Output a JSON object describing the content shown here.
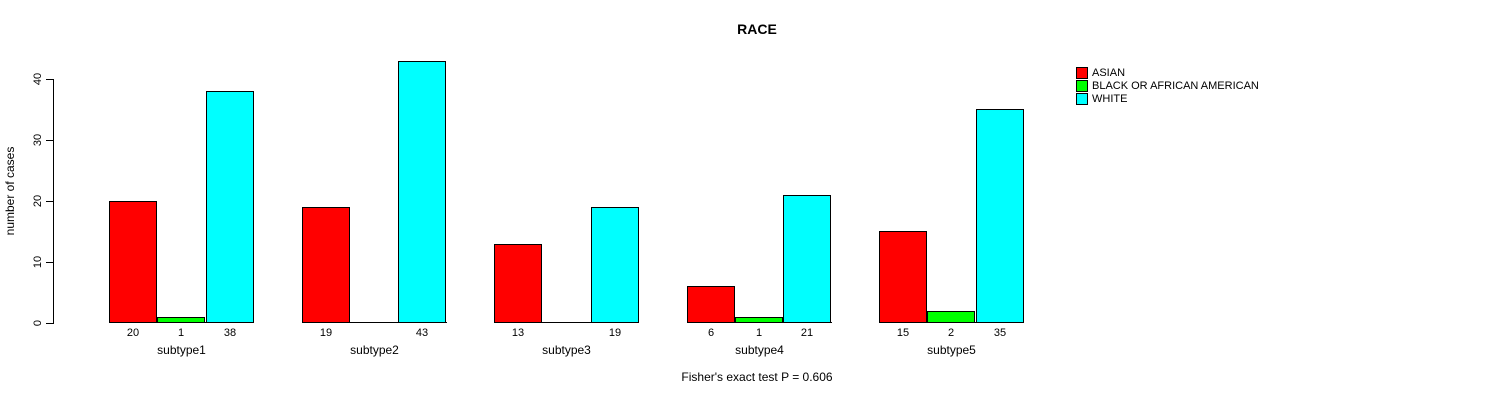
{
  "chart_data": {
    "type": "bar",
    "title": "RACE",
    "ylabel": "number of cases",
    "xlabel": "",
    "categories": [
      "subtype1",
      "subtype2",
      "subtype3",
      "subtype4",
      "subtype5"
    ],
    "series": [
      {
        "name": "ASIAN",
        "color": "#ff0000",
        "values": [
          20,
          19,
          13,
          6,
          15
        ]
      },
      {
        "name": "BLACK OR AFRICAN AMERICAN",
        "color": "#00ff00",
        "values": [
          1,
          0,
          0,
          1,
          2
        ]
      },
      {
        "name": "WHITE",
        "color": "#00ffff",
        "values": [
          38,
          43,
          19,
          21,
          35
        ]
      }
    ],
    "y_ticks": [
      0,
      10,
      20,
      30,
      40
    ],
    "ylim": [
      0,
      43
    ],
    "grid": false,
    "legend_position": "right",
    "bar_value_labels": "shown below each bar; zero values have no bar and no label",
    "footnote": "Fisher's exact test P = 0.606",
    "background_color": "#ffffff",
    "text_color": "#000000"
  }
}
